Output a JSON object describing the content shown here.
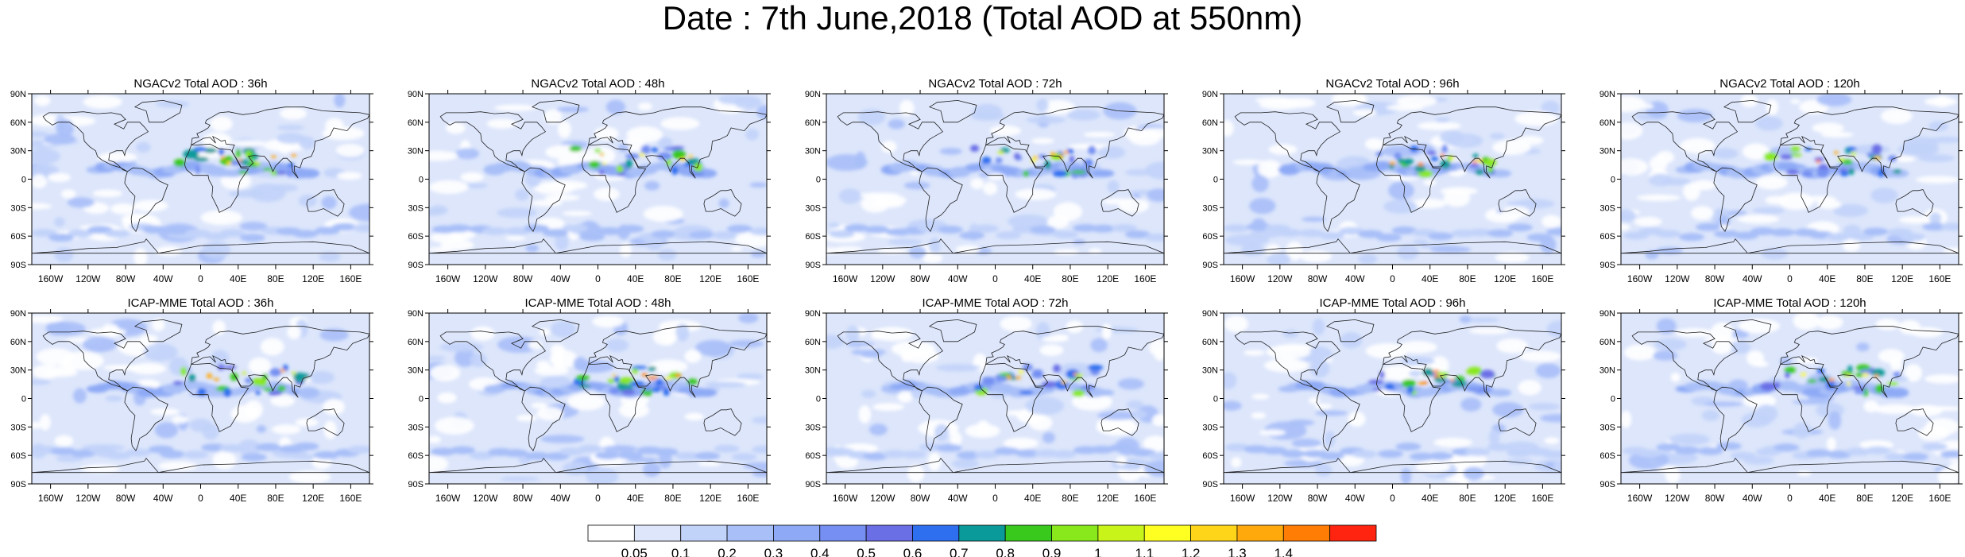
{
  "title": "Date : 7th June,2018 (Total AOD at 550nm)",
  "panels": [
    {
      "title": "NGACv2 Total AOD : 36h"
    },
    {
      "title": "NGACv2 Total AOD : 48h"
    },
    {
      "title": "NGACv2 Total AOD : 72h"
    },
    {
      "title": "NGACv2 Total AOD : 96h"
    },
    {
      "title": "NGACv2 Total AOD : 120h"
    },
    {
      "title": "ICAP-MME Total AOD : 36h"
    },
    {
      "title": "ICAP-MME Total AOD : 48h"
    },
    {
      "title": "ICAP-MME Total AOD : 72h"
    },
    {
      "title": "ICAP-MME Total AOD : 96h"
    },
    {
      "title": "ICAP-MME Total AOD : 120h"
    }
  ],
  "lat_ticks": [
    "90N",
    "60N",
    "30N",
    "0",
    "30S",
    "60S",
    "90S"
  ],
  "lon_ticks": [
    "160W",
    "120W",
    "80W",
    "40W",
    "0",
    "40E",
    "80E",
    "120E",
    "160E"
  ],
  "colorbar": {
    "labels": [
      "0.05",
      "0.1",
      "0.2",
      "0.3",
      "0.4",
      "0.5",
      "0.6",
      "0.7",
      "0.8",
      "0.9",
      "1",
      "1.1",
      "1.2",
      "1.3",
      "1.4"
    ],
    "colors": [
      "#ffffff",
      "#dde6fb",
      "#c2d3fa",
      "#a8bff8",
      "#8eaaf6",
      "#7590f2",
      "#6b6fe6",
      "#2d6fef",
      "#0a9a9a",
      "#39c81c",
      "#88e81b",
      "#c8f41a",
      "#ffff22",
      "#ffd51a",
      "#ffa90c",
      "#ff7d05",
      "#ff2410"
    ]
  }
}
